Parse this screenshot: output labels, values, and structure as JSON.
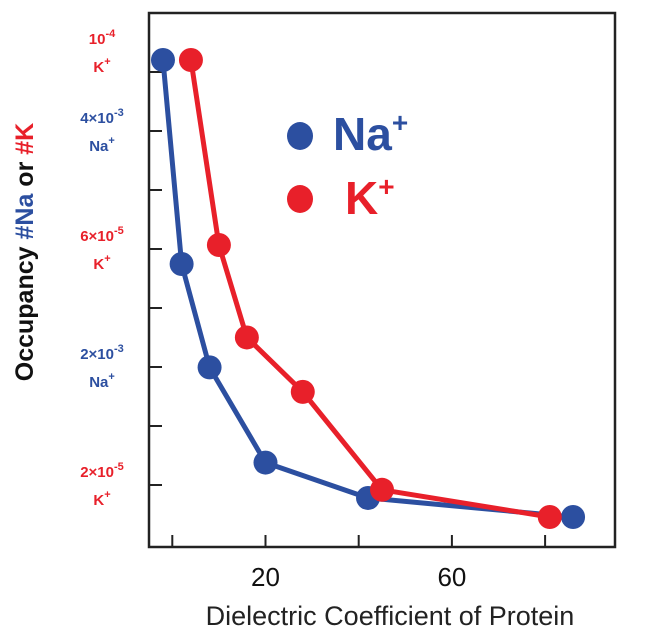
{
  "chart_data": {
    "type": "line",
    "xlabel": "Dielectric Coefficient of Protein",
    "ylabel": {
      "prefix": "Occupancy ",
      "part_na": "#Na",
      "middle": " or ",
      "part_k": "#K"
    },
    "xlim": [
      -5,
      95
    ],
    "x_ticks": [
      20,
      60
    ],
    "y_tick_count": 8,
    "y_annotations": [
      {
        "value": "10",
        "exp": "-4",
        "ion": "K",
        "color": "#e8202a"
      },
      {
        "value": "4×10",
        "exp": "-3",
        "ion": "Na",
        "color": "#2c4fa0"
      },
      {
        "value": "6×10",
        "exp": "-5",
        "ion": "K",
        "color": "#e8202a"
      },
      {
        "value": "2×10",
        "exp": "-3",
        "ion": "Na",
        "color": "#2c4fa0"
      },
      {
        "value": "2×10",
        "exp": "-5",
        "ion": "K",
        "color": "#e8202a"
      }
    ],
    "series": [
      {
        "name": "Na",
        "sup": "+",
        "color": "#2c4fa0",
        "points": [
          [
            -2,
            4.2
          ],
          [
            2,
            3.45
          ],
          [
            8,
            3.07
          ],
          [
            20,
            2.72
          ],
          [
            42,
            2.59
          ],
          [
            86,
            2.52
          ]
        ]
      },
      {
        "name": "K",
        "sup": "+",
        "color": "#e8202a",
        "points": [
          [
            4,
            4.2
          ],
          [
            10,
            3.52
          ],
          [
            16,
            3.18
          ],
          [
            28,
            2.98
          ],
          [
            45,
            2.62
          ],
          [
            81,
            2.52
          ]
        ]
      }
    ],
    "legend_position": "top-right",
    "grid": false
  }
}
